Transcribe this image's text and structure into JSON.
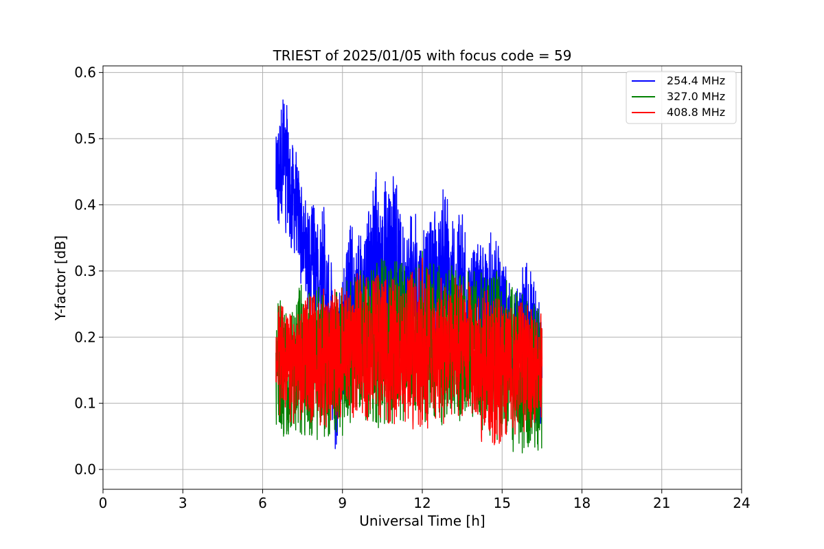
{
  "chart_data": {
    "type": "line",
    "title": "TRIEST of 2025/01/05 with focus code = 59",
    "xlabel": "Universal Time [h]",
    "ylabel": "Y-factor [dB]",
    "xlim": [
      0,
      24
    ],
    "ylim": [
      -0.03,
      0.61
    ],
    "xticks": [
      0,
      3,
      6,
      9,
      12,
      15,
      18,
      21,
      24
    ],
    "yticks": [
      0.0,
      0.1,
      0.2,
      0.3,
      0.4,
      0.5,
      0.6
    ],
    "xtick_labels": [
      "0",
      "3",
      "6",
      "9",
      "12",
      "15",
      "18",
      "21",
      "24"
    ],
    "ytick_labels": [
      "0.0",
      "0.1",
      "0.2",
      "0.3",
      "0.4",
      "0.5",
      "0.6"
    ],
    "grid": true,
    "legend_position": "top-right",
    "series": [
      {
        "name": "254.4 MHz",
        "color": "#0000ff",
        "x_start": 6.5,
        "x_end": 16.5,
        "envelope_points": [
          [
            6.5,
            0.37,
            0.52
          ],
          [
            6.7,
            0.36,
            0.58
          ],
          [
            6.9,
            0.35,
            0.56
          ],
          [
            7.1,
            0.33,
            0.52
          ],
          [
            7.3,
            0.3,
            0.48
          ],
          [
            7.5,
            0.27,
            0.42
          ],
          [
            7.7,
            0.24,
            0.4
          ],
          [
            7.9,
            0.22,
            0.4
          ],
          [
            8.1,
            0.2,
            0.4
          ],
          [
            8.3,
            0.17,
            0.4
          ],
          [
            8.5,
            0.1,
            0.35
          ],
          [
            8.7,
            0.0,
            0.28
          ],
          [
            8.9,
            0.06,
            0.27
          ],
          [
            9.1,
            0.12,
            0.32
          ],
          [
            9.3,
            0.14,
            0.37
          ],
          [
            9.5,
            0.15,
            0.36
          ],
          [
            9.8,
            0.16,
            0.35
          ],
          [
            10.0,
            0.18,
            0.41
          ],
          [
            10.2,
            0.2,
            0.46
          ],
          [
            10.5,
            0.19,
            0.43
          ],
          [
            10.8,
            0.18,
            0.45
          ],
          [
            11.0,
            0.17,
            0.44
          ],
          [
            11.3,
            0.16,
            0.4
          ],
          [
            11.6,
            0.16,
            0.39
          ],
          [
            12.0,
            0.15,
            0.38
          ],
          [
            12.4,
            0.15,
            0.4
          ],
          [
            12.8,
            0.15,
            0.43
          ],
          [
            13.1,
            0.15,
            0.39
          ],
          [
            13.5,
            0.14,
            0.39
          ],
          [
            13.9,
            0.14,
            0.34
          ],
          [
            14.3,
            0.14,
            0.34
          ],
          [
            14.6,
            0.13,
            0.36
          ],
          [
            14.8,
            0.13,
            0.37
          ],
          [
            15.0,
            0.12,
            0.33
          ],
          [
            15.3,
            0.1,
            0.3
          ],
          [
            15.6,
            0.09,
            0.28
          ],
          [
            15.9,
            0.08,
            0.33
          ],
          [
            16.2,
            0.05,
            0.29
          ],
          [
            16.5,
            0.03,
            0.25
          ]
        ]
      },
      {
        "name": "327.0 MHz",
        "color": "#008000",
        "x_start": 6.5,
        "x_end": 16.5,
        "envelope_points": [
          [
            6.5,
            0.05,
            0.25
          ],
          [
            7.0,
            0.03,
            0.27
          ],
          [
            7.5,
            0.05,
            0.28
          ],
          [
            8.0,
            0.04,
            0.29
          ],
          [
            8.5,
            0.05,
            0.27
          ],
          [
            9.0,
            0.05,
            0.28
          ],
          [
            9.5,
            0.07,
            0.3
          ],
          [
            10.0,
            0.07,
            0.31
          ],
          [
            10.5,
            0.06,
            0.32
          ],
          [
            11.0,
            0.07,
            0.32
          ],
          [
            11.5,
            0.07,
            0.31
          ],
          [
            12.0,
            0.07,
            0.33
          ],
          [
            12.5,
            0.07,
            0.31
          ],
          [
            13.0,
            0.06,
            0.31
          ],
          [
            13.5,
            0.06,
            0.3
          ],
          [
            14.0,
            0.05,
            0.3
          ],
          [
            14.5,
            0.05,
            0.31
          ],
          [
            15.0,
            0.03,
            0.3
          ],
          [
            15.5,
            0.02,
            0.27
          ],
          [
            16.0,
            0.01,
            0.26
          ],
          [
            16.5,
            0.03,
            0.24
          ]
        ]
      },
      {
        "name": "408.8 MHz",
        "color": "#ff0000",
        "x_start": 6.5,
        "x_end": 16.5,
        "envelope_points": [
          [
            6.5,
            0.08,
            0.25
          ],
          [
            7.0,
            0.07,
            0.26
          ],
          [
            7.5,
            0.07,
            0.26
          ],
          [
            8.0,
            0.07,
            0.27
          ],
          [
            8.5,
            0.06,
            0.28
          ],
          [
            9.0,
            0.08,
            0.29
          ],
          [
            9.5,
            0.07,
            0.3
          ],
          [
            10.0,
            0.07,
            0.29
          ],
          [
            10.5,
            0.07,
            0.3
          ],
          [
            11.0,
            0.06,
            0.29
          ],
          [
            11.5,
            0.06,
            0.31
          ],
          [
            12.0,
            0.06,
            0.32
          ],
          [
            12.5,
            0.06,
            0.3
          ],
          [
            13.0,
            0.06,
            0.29
          ],
          [
            13.5,
            0.06,
            0.29
          ],
          [
            14.0,
            0.05,
            0.28
          ],
          [
            14.5,
            0.03,
            0.27
          ],
          [
            15.0,
            0.04,
            0.27
          ],
          [
            15.5,
            0.05,
            0.26
          ],
          [
            16.0,
            0.06,
            0.25
          ],
          [
            16.5,
            0.08,
            0.24
          ]
        ]
      }
    ]
  }
}
